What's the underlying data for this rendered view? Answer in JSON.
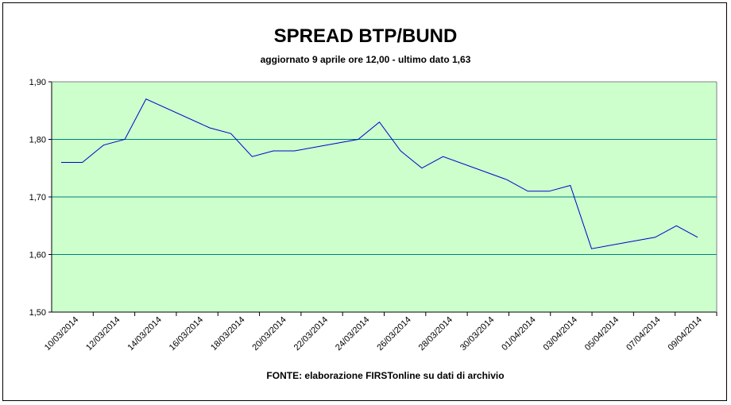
{
  "chart_data": {
    "type": "line",
    "title": "SPREAD BTP/BUND",
    "subtitle": "aggiornato 9 aprile ore 12,00 - ultimo dato 1,63",
    "source": "FONTE:  elaborazione FIRSTonline su dati di archivio",
    "xlabel": "",
    "ylabel": "",
    "ylim": [
      1.5,
      1.9
    ],
    "yticks": [
      1.5,
      1.6,
      1.7,
      1.8,
      1.9
    ],
    "ytick_labels": [
      "1,50",
      "1,60",
      "1,70",
      "1,80",
      "1,90"
    ],
    "xlim": [
      "2014-03-10",
      "2014-04-09"
    ],
    "xtick_labels": [
      "10/03/2014",
      "12/03/2014",
      "14/03/2014",
      "16/03/2014",
      "18/03/2014",
      "20/03/2014",
      "22/03/2014",
      "24/03/2014",
      "26/03/2014",
      "28/03/2014",
      "30/03/2014",
      "01/04/2014",
      "03/04/2014",
      "05/04/2014",
      "07/04/2014",
      "09/04/2014"
    ],
    "grid": true,
    "plot_background": "#ccffcc",
    "line_color": "#0000cc",
    "gridline_color": "#008080",
    "series": [
      {
        "x": [
          "2014-03-10",
          "2014-03-11",
          "2014-03-12",
          "2014-03-13",
          "2014-03-14",
          "2014-03-17",
          "2014-03-18",
          "2014-03-19",
          "2014-03-20",
          "2014-03-21",
          "2014-03-24",
          "2014-03-25",
          "2014-03-26",
          "2014-03-27",
          "2014-03-28",
          "2014-03-31",
          "2014-04-01",
          "2014-04-02",
          "2014-04-03",
          "2014-04-04",
          "2014-04-07",
          "2014-04-08",
          "2014-04-09"
        ],
        "values": [
          1.76,
          1.76,
          1.79,
          1.8,
          1.87,
          1.82,
          1.81,
          1.77,
          1.78,
          1.78,
          1.8,
          1.83,
          1.78,
          1.75,
          1.77,
          1.73,
          1.71,
          1.71,
          1.72,
          1.61,
          1.63,
          1.65,
          1.63
        ]
      }
    ]
  }
}
